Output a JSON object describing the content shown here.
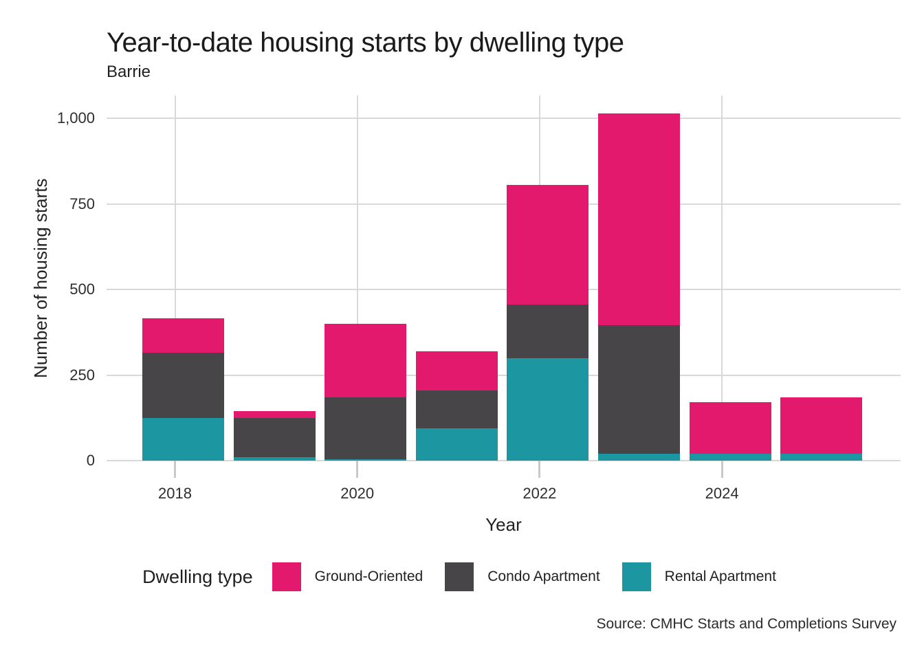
{
  "title": "Year-to-date housing starts by dwelling type",
  "subtitle": "Barrie",
  "source": "Source: CMHC Starts and Completions Survey",
  "legend": {
    "title": "Dwelling type",
    "items": [
      {
        "label": "Ground-Oriented",
        "color": "#E3196E"
      },
      {
        "label": "Condo Apartment",
        "color": "#484549"
      },
      {
        "label": "Rental Apartment",
        "color": "#1C96A1"
      }
    ]
  },
  "chart_data": {
    "type": "bar",
    "stacked": true,
    "title": "Year-to-date housing starts by dwelling type",
    "subtitle": "Barrie",
    "xlabel": "Year",
    "ylabel": "Number of housing starts",
    "categories": [
      2018,
      2019,
      2020,
      2021,
      2022,
      2023,
      2024,
      2025
    ],
    "x_tick_labels": [
      "2018",
      "2020",
      "2022",
      "2024"
    ],
    "x_tick_years": [
      2018,
      2020,
      2022,
      2024
    ],
    "y_ticks": [
      0,
      250,
      500,
      750,
      1000
    ],
    "y_tick_labels": [
      "0",
      "250",
      "500",
      "750",
      "1,000"
    ],
    "ylim": [
      0,
      1066
    ],
    "grid": true,
    "legend_position": "bottom",
    "series": [
      {
        "name": "Ground-Oriented",
        "color": "#E3196E",
        "values": [
          100,
          20,
          215,
          115,
          350,
          620,
          150,
          165
        ]
      },
      {
        "name": "Condo Apartment",
        "color": "#484549",
        "values": [
          190,
          115,
          180,
          110,
          155,
          375,
          0,
          0
        ]
      },
      {
        "name": "Rental Apartment",
        "color": "#1C96A1",
        "values": [
          125,
          10,
          5,
          95,
          300,
          20,
          20,
          20
        ]
      }
    ],
    "totals": [
      415,
      145,
      400,
      320,
      805,
      1015,
      170,
      185
    ]
  }
}
